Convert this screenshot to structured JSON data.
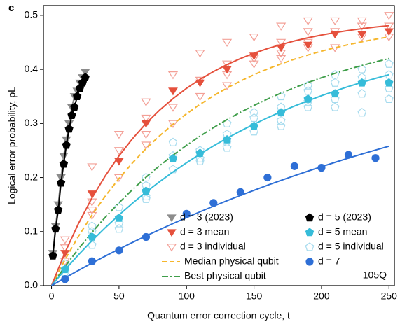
{
  "chart_data": {
    "type": "scatter",
    "panel_label": "c",
    "annotation": "105Q",
    "xlabel": "Quantum error correction cycle, t",
    "ylabel": "Logical error probability, pL",
    "xlim": [
      -6,
      254
    ],
    "ylim": [
      0,
      0.518
    ],
    "xticks": [
      0,
      50,
      100,
      150,
      200,
      250
    ],
    "yticks": [
      {
        "value": 0,
        "label": "0.0"
      },
      0.1,
      0.2,
      0.3,
      0.4,
      0.5
    ],
    "series": [
      {
        "name": "d = 3 (2023)",
        "color": "#8c8c8c",
        "marker": "tri-down",
        "line": "solid",
        "x": [
          1,
          3,
          5,
          7,
          9,
          11,
          13,
          15,
          17,
          19,
          21,
          23,
          25
        ],
        "values": [
          0.06,
          0.11,
          0.15,
          0.2,
          0.24,
          0.27,
          0.3,
          0.33,
          0.35,
          0.36,
          0.375,
          0.385,
          0.395
        ]
      },
      {
        "name": "d = 5 (2023)",
        "color": "#000000",
        "marker": "pentagon",
        "line": "solid",
        "x": [
          1,
          3,
          5,
          7,
          9,
          11,
          13,
          15,
          17,
          19,
          21,
          23,
          25
        ],
        "values": [
          0.055,
          0.105,
          0.14,
          0.19,
          0.225,
          0.26,
          0.29,
          0.315,
          0.33,
          0.35,
          0.365,
          0.375,
          0.385
        ]
      },
      {
        "name": "d = 3 mean",
        "color": "#e5503c",
        "marker": "tri-down",
        "x": [
          10,
          30,
          50,
          70,
          90,
          110,
          130,
          150,
          170,
          190,
          210,
          230,
          250
        ],
        "values": [
          0.06,
          0.17,
          0.23,
          0.3,
          0.36,
          0.375,
          0.4,
          0.425,
          0.44,
          0.445,
          0.465,
          0.465,
          0.47
        ]
      },
      {
        "name": "d = 5 mean",
        "color": "#36bcd9",
        "marker": "pentagon",
        "x": [
          10,
          30,
          50,
          70,
          90,
          110,
          130,
          150,
          170,
          190,
          210,
          230,
          250
        ],
        "values": [
          0.03,
          0.09,
          0.125,
          0.175,
          0.235,
          0.245,
          0.27,
          0.295,
          0.32,
          0.345,
          0.355,
          0.375,
          0.375
        ]
      },
      {
        "name": "d = 3 individual",
        "color": "#f3a097",
        "marker": "tri-down-open",
        "x": [
          10,
          10,
          10,
          30,
          30,
          30,
          30,
          50,
          50,
          50,
          70,
          70,
          70,
          70,
          90,
          90,
          90,
          90,
          110,
          110,
          110,
          130,
          130,
          130,
          130,
          150,
          150,
          150,
          170,
          170,
          170,
          170,
          190,
          190,
          190,
          190,
          210,
          210,
          210,
          230,
          230,
          230,
          250,
          250,
          250
        ],
        "values": [
          0.085,
          0.045,
          0.07,
          0.22,
          0.14,
          0.155,
          0.13,
          0.28,
          0.25,
          0.2,
          0.34,
          0.28,
          0.26,
          0.31,
          0.39,
          0.36,
          0.3,
          0.33,
          0.43,
          0.38,
          0.35,
          0.45,
          0.41,
          0.39,
          0.37,
          0.46,
          0.42,
          0.41,
          0.48,
          0.45,
          0.43,
          0.42,
          0.49,
          0.47,
          0.45,
          0.44,
          0.49,
          0.47,
          0.44,
          0.49,
          0.48,
          0.46,
          0.5,
          0.48,
          0.46
        ]
      },
      {
        "name": "d = 5 individual",
        "color": "#a6dbee",
        "marker": "pentagon-open",
        "x": [
          10,
          10,
          30,
          30,
          30,
          50,
          50,
          50,
          70,
          70,
          70,
          70,
          90,
          90,
          90,
          110,
          110,
          110,
          130,
          130,
          130,
          130,
          150,
          150,
          150,
          170,
          170,
          170,
          170,
          190,
          190,
          190,
          190,
          210,
          210,
          210,
          210,
          230,
          230,
          230,
          230,
          250,
          250,
          250,
          250
        ],
        "values": [
          0.04,
          0.025,
          0.11,
          0.1,
          0.075,
          0.145,
          0.115,
          0.105,
          0.2,
          0.165,
          0.16,
          0.185,
          0.265,
          0.24,
          0.215,
          0.25,
          0.23,
          0.235,
          0.3,
          0.28,
          0.265,
          0.255,
          0.32,
          0.31,
          0.285,
          0.35,
          0.305,
          0.295,
          0.33,
          0.37,
          0.36,
          0.34,
          0.33,
          0.39,
          0.375,
          0.345,
          0.33,
          0.4,
          0.385,
          0.355,
          0.32,
          0.41,
          0.39,
          0.365,
          0.345
        ]
      },
      {
        "name": "Median physical qubit",
        "color": "#f5b62c",
        "line": "dashed",
        "x": [
          0,
          10,
          20,
          30,
          40,
          50,
          60,
          70,
          80,
          90,
          100,
          110,
          120,
          130,
          140,
          150,
          160,
          170,
          180,
          190,
          200,
          210,
          220,
          230,
          240,
          250
        ],
        "values": [
          0,
          0.048,
          0.0915,
          0.1307,
          0.1662,
          0.1983,
          0.2272,
          0.2535,
          0.2771,
          0.2986,
          0.3179,
          0.3354,
          0.3512,
          0.3655,
          0.3784,
          0.3901,
          0.4007,
          0.4102,
          0.4188,
          0.4266,
          0.4337,
          0.44,
          0.4458,
          0.451,
          0.4557,
          0.46
        ]
      },
      {
        "name": "d = 7",
        "color": "#2e6fd6",
        "marker": "circle",
        "x": [
          10,
          30,
          50,
          70,
          100,
          120,
          140,
          160,
          180,
          200,
          220,
          240
        ],
        "values": [
          0.012,
          0.045,
          0.065,
          0.09,
          0.133,
          0.153,
          0.173,
          0.2,
          0.221,
          0.218,
          0.242,
          0.236
        ]
      },
      {
        "name": "Best physical qubit",
        "color": "#3f9e4a",
        "line": "dashdot",
        "x": [
          0,
          10,
          20,
          30,
          40,
          50,
          60,
          70,
          80,
          90,
          100,
          110,
          120,
          130,
          140,
          150,
          160,
          170,
          180,
          190,
          200,
          210,
          220,
          230,
          240,
          250
        ],
        "values": [
          0,
          0.0353,
          0.0681,
          0.0986,
          0.127,
          0.1533,
          0.1778,
          0.2006,
          0.2217,
          0.2414,
          0.2596,
          0.2766,
          0.2924,
          0.3071,
          0.3207,
          0.3334,
          0.3451,
          0.3561,
          0.3662,
          0.3757,
          0.3845,
          0.3926,
          0.4002,
          0.4073,
          0.4138,
          0.4199
        ]
      },
      {
        "color": "#e5503c",
        "line": "solid",
        "x": [
          0,
          10,
          20,
          30,
          40,
          50,
          60,
          70,
          80,
          90,
          100,
          110,
          120,
          130,
          140,
          150,
          160,
          170,
          180,
          190,
          200,
          210,
          220,
          230,
          240,
          250
        ],
        "values": [
          0,
          0.0614,
          0.1151,
          0.1624,
          0.2038,
          0.2401,
          0.272,
          0.3,
          0.3245,
          0.346,
          0.3649,
          0.3815,
          0.396,
          0.4088,
          0.42,
          0.4298,
          0.4384,
          0.4459,
          0.4526,
          0.4584,
          0.4635,
          0.468,
          0.4719,
          0.4753,
          0.4784,
          0.481
        ]
      },
      {
        "color": "#36bcd9",
        "line": "solid",
        "x": [
          0,
          10,
          20,
          30,
          40,
          50,
          60,
          70,
          80,
          90,
          100,
          110,
          120,
          130,
          140,
          150,
          160,
          170,
          180,
          190,
          200,
          210,
          220,
          230,
          240,
          250
        ],
        "values": [
          0,
          0.0294,
          0.0571,
          0.0832,
          0.1077,
          0.1308,
          0.1525,
          0.173,
          0.1922,
          0.2103,
          0.2273,
          0.2434,
          0.2585,
          0.2727,
          0.2861,
          0.2987,
          0.3105,
          0.3217,
          0.3322,
          0.342,
          0.3513,
          0.36,
          0.3683,
          0.376,
          0.3833,
          0.3902
        ]
      },
      {
        "color": "#2e6fd6",
        "line": "solid",
        "x": [
          0,
          10,
          20,
          30,
          40,
          50,
          60,
          70,
          80,
          90,
          100,
          110,
          120,
          130,
          140,
          150,
          160,
          170,
          180,
          190,
          200,
          210,
          220,
          230,
          240,
          250
        ],
        "values": [
          0,
          0.0143,
          0.0282,
          0.0417,
          0.0548,
          0.0675,
          0.0799,
          0.0919,
          0.1036,
          0.1149,
          0.1259,
          0.1366,
          0.147,
          0.1571,
          0.1669,
          0.1764,
          0.1857,
          0.1947,
          0.2034,
          0.2119,
          0.2201,
          0.2281,
          0.2359,
          0.2435,
          0.2508,
          0.2579
        ]
      }
    ]
  }
}
